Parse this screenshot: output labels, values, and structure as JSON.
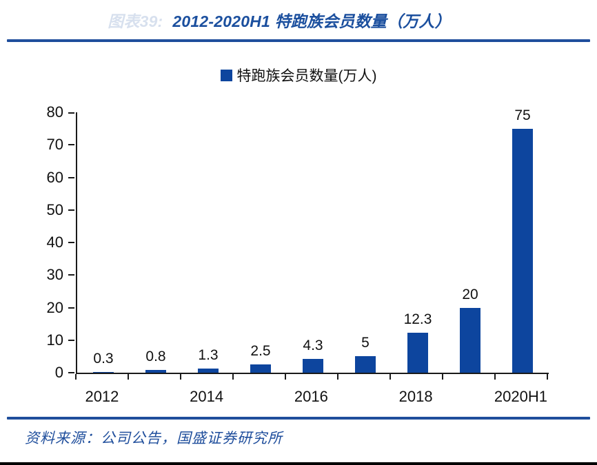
{
  "header": {
    "figure_label": "图表39:",
    "title": "2012-2020H1 特跑族会员数量（万人）"
  },
  "legend": {
    "label": "特跑族会员数量(万人)"
  },
  "chart_data": {
    "type": "bar",
    "title": "2012-2020H1 特跑族会员数量（万人）",
    "categories": [
      "2012",
      "2013",
      "2014",
      "2015",
      "2016",
      "2017",
      "2018",
      "2019",
      "2020H1"
    ],
    "values": [
      0.3,
      0.8,
      1.3,
      2.5,
      4.3,
      5,
      12.3,
      20,
      75
    ],
    "data_labels": [
      "0.3",
      "0.8",
      "1.3",
      "2.5",
      "4.3",
      "5",
      "12.3",
      "20",
      "75"
    ],
    "x_axis_visible_labels": [
      "2012",
      "2014",
      "2016",
      "2018",
      "2020H1"
    ],
    "xlabel": "",
    "ylabel": "",
    "ylim": [
      0,
      80
    ],
    "y_ticks": [
      0,
      10,
      20,
      30,
      40,
      50,
      60,
      70,
      80
    ],
    "grid": false,
    "legend": "特跑族会员数量(万人)",
    "legend_position": "top-center",
    "bar_color": "#0d459e"
  },
  "footer": {
    "source": "资料来源：公司公告，国盛证券研究所"
  },
  "colors": {
    "accent_blue": "#1f4e9c",
    "bar_blue": "#0d459e",
    "axis_black": "#1a1a1a",
    "title_blue": "#1b4f9e"
  }
}
